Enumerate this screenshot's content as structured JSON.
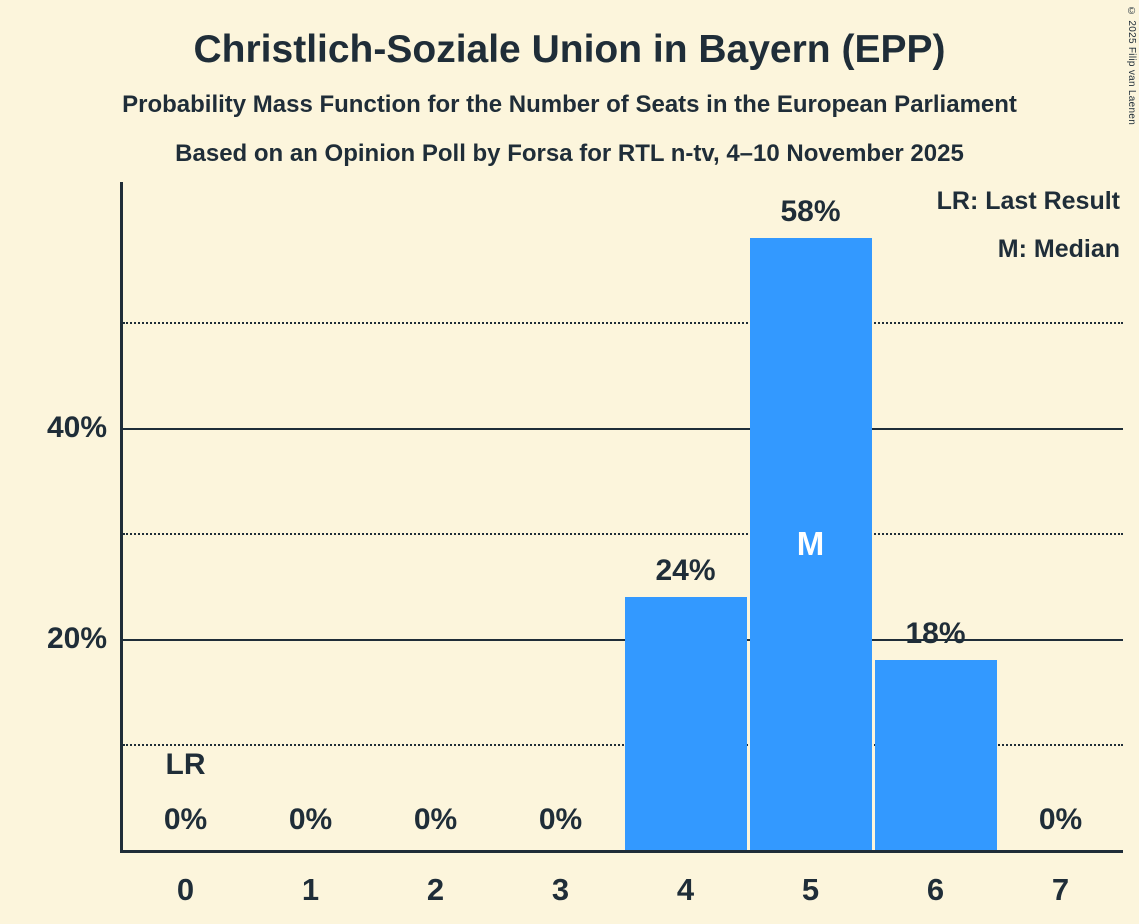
{
  "page": {
    "title": "Christlich-Soziale Union in Bayern (EPP)",
    "subtitle1": "Probability Mass Function for the Number of Seats in the European Parliament",
    "subtitle2": "Based on an Opinion Poll by Forsa for RTL n-tv, 4–10 November 2025",
    "copyright": "© 2025 Filip van Laenen"
  },
  "legend": [
    {
      "label": "LR: Last Result"
    },
    {
      "label": "M: Median"
    }
  ],
  "colors": {
    "background": "#FCF5DC",
    "bar": "#3399FF",
    "text": "#1F2D38",
    "median_text": "#FFFFFF"
  },
  "chart_data": {
    "type": "bar",
    "title": "Christlich-Soziale Union in Bayern (EPP)",
    "xlabel": "",
    "ylabel": "",
    "categories": [
      "0",
      "1",
      "2",
      "3",
      "4",
      "5",
      "6",
      "7"
    ],
    "values": [
      0,
      0,
      0,
      0,
      24,
      58,
      18,
      0
    ],
    "value_labels": [
      "0%",
      "0%",
      "0%",
      "0%",
      "24%",
      "58%",
      "18%",
      "0%"
    ],
    "y_ticks": [
      {
        "value": 20,
        "label": "20%"
      },
      {
        "value": 40,
        "label": "40%"
      }
    ],
    "solid_gridlines": [
      20,
      40
    ],
    "dotted_gridlines": [
      10,
      30,
      50
    ],
    "ylim": [
      0,
      63.3
    ],
    "grid": "horizontal",
    "legend_position": "top-right",
    "median": {
      "category": "5",
      "marker": "M"
    },
    "last_result": {
      "category": "0",
      "marker": "LR"
    }
  }
}
